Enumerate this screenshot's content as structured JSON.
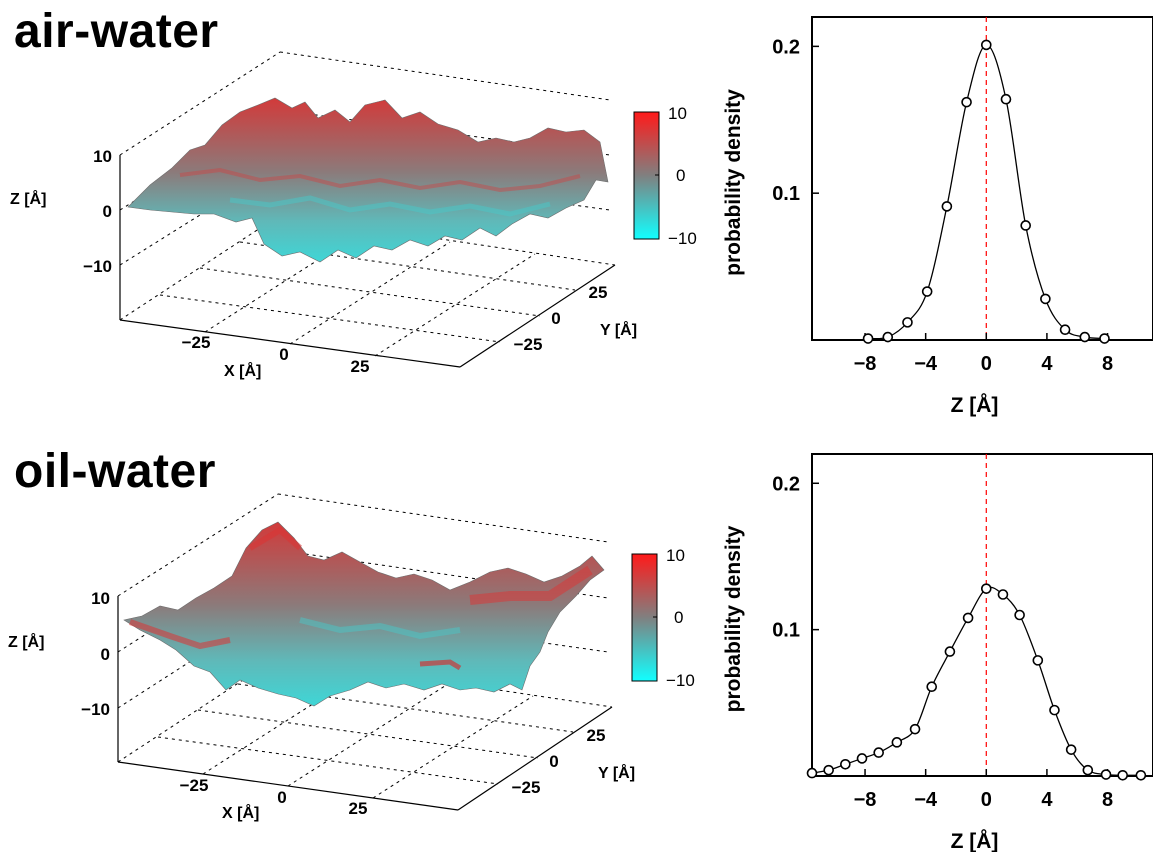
{
  "panels": [
    {
      "title": "air-water",
      "surface": {
        "xlabel": "X [Å]",
        "ylabel": "Y [Å]",
        "zlabel": "Z [Å]",
        "xticks": [
          "−25",
          "0",
          "25"
        ],
        "yticks": [
          "25",
          "0",
          "−25"
        ],
        "zticks": [
          "10",
          "0",
          "−10"
        ],
        "colorbar": {
          "ticks": [
            "10",
            "0",
            "−10"
          ],
          "colors": [
            "#ff1a1a",
            "#808080",
            "#11ffff"
          ]
        }
      }
    },
    {
      "title": "oil-water",
      "surface": {
        "xlabel": "X [Å]",
        "ylabel": "Y [Å]",
        "zlabel": "Z [Å]",
        "xticks": [
          "−25",
          "0",
          "25"
        ],
        "yticks": [
          "25",
          "0",
          "−25"
        ],
        "zticks": [
          "10",
          "0",
          "−10"
        ],
        "colorbar": {
          "ticks": [
            "10",
            "0",
            "−10"
          ],
          "colors": [
            "#ff1a1a",
            "#808080",
            "#11ffff"
          ]
        }
      }
    }
  ],
  "chart_data": [
    {
      "type": "line",
      "xlabel": "Z [Å]",
      "ylabel": "probability density",
      "xlim": [
        -11.5,
        11
      ],
      "ylim": [
        0,
        0.22
      ],
      "xticks": [
        {
          "v": -8,
          "label": "−8"
        },
        {
          "v": -4,
          "label": "−4"
        },
        {
          "v": 0,
          "label": "0"
        },
        {
          "v": 4,
          "label": "4"
        },
        {
          "v": 8,
          "label": "8"
        }
      ],
      "yticks": [
        {
          "v": 0.1,
          "label": "0.1"
        },
        {
          "v": 0.2,
          "label": "0.2"
        }
      ],
      "reference_line": {
        "x": 0,
        "color": "#ff0000",
        "style": "dashed"
      },
      "points": [
        [
          -7.8,
          0.001
        ],
        [
          -6.5,
          0.002
        ],
        [
          -5.2,
          0.012
        ],
        [
          -3.9,
          0.033
        ],
        [
          -2.6,
          0.091
        ],
        [
          -1.3,
          0.162
        ],
        [
          0,
          0.201
        ],
        [
          1.3,
          0.164
        ],
        [
          2.6,
          0.078
        ],
        [
          3.9,
          0.028
        ],
        [
          5.2,
          0.007
        ],
        [
          6.5,
          0.002
        ],
        [
          7.8,
          0.001
        ]
      ],
      "curve_color": "#000000"
    },
    {
      "type": "line",
      "xlabel": "Z [Å]",
      "ylabel": "probability density",
      "xlim": [
        -11.5,
        11
      ],
      "ylim": [
        0,
        0.22
      ],
      "xticks": [
        {
          "v": -8,
          "label": "−8"
        },
        {
          "v": -4,
          "label": "−4"
        },
        {
          "v": 0,
          "label": "0"
        },
        {
          "v": 4,
          "label": "4"
        },
        {
          "v": 8,
          "label": "8"
        }
      ],
      "yticks": [
        {
          "v": 0.1,
          "label": "0.1"
        },
        {
          "v": 0.2,
          "label": "0.2"
        }
      ],
      "reference_line": {
        "x": 0,
        "color": "#ff0000",
        "style": "dashed"
      },
      "points": [
        [
          -11.5,
          0.002
        ],
        [
          -10.4,
          0.004
        ],
        [
          -9.3,
          0.008
        ],
        [
          -8.2,
          0.012
        ],
        [
          -7.1,
          0.016
        ],
        [
          -5.9,
          0.023
        ],
        [
          -4.7,
          0.032
        ],
        [
          -3.6,
          0.061
        ],
        [
          -2.4,
          0.085
        ],
        [
          -1.2,
          0.108
        ],
        [
          0,
          0.128
        ],
        [
          1.1,
          0.124
        ],
        [
          2.2,
          0.11
        ],
        [
          3.4,
          0.079
        ],
        [
          4.5,
          0.045
        ],
        [
          5.6,
          0.018
        ],
        [
          6.7,
          0.004
        ],
        [
          7.9,
          0.001
        ],
        [
          9.0,
          0.0005
        ],
        [
          10.2,
          0.0005
        ]
      ],
      "curve_color": "#000000"
    }
  ]
}
